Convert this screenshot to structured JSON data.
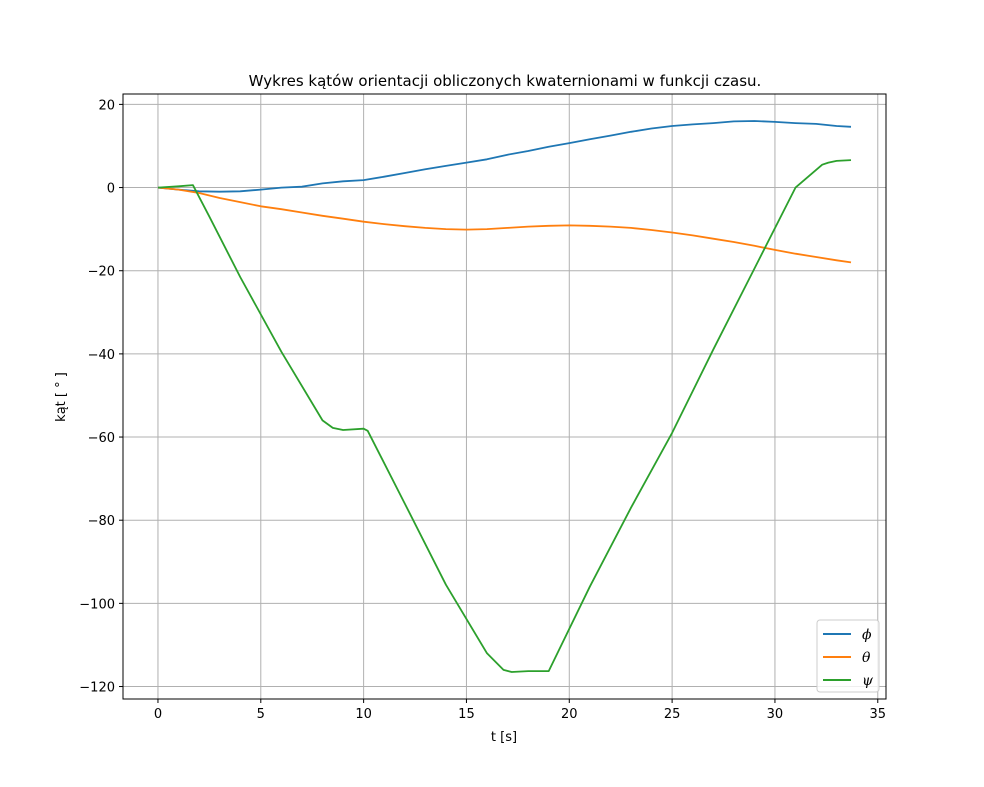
{
  "chart_data": {
    "type": "line",
    "title": "Wykres kątów orientacji obliczonych kwaternionami w funkcji czasu.",
    "xlabel": "t [s]",
    "ylabel": "kąt [ ° ]",
    "xlim": [
      -1.7,
      35.4
    ],
    "ylim": [
      -123,
      22.5
    ],
    "xticks": [
      0,
      5,
      10,
      15,
      20,
      25,
      30,
      35
    ],
    "xtick_labels": [
      "0",
      "5",
      "10",
      "15",
      "20",
      "25",
      "30",
      "35"
    ],
    "yticks": [
      20,
      0,
      -20,
      -40,
      -60,
      -80,
      -100,
      -120
    ],
    "ytick_labels": [
      "20",
      "0",
      "−20",
      "−40",
      "−60",
      "−80",
      "−100",
      "−120"
    ],
    "grid": true,
    "legend_position": "lower-right",
    "series": [
      {
        "name": "ϕ",
        "color": "#1f77b4",
        "x": [
          0,
          1,
          2,
          3,
          4,
          5,
          6,
          7,
          8,
          9,
          10,
          11,
          12,
          13,
          14,
          15,
          16,
          17,
          18,
          19,
          20,
          21,
          22,
          23,
          24,
          25,
          26,
          27,
          28,
          29,
          30,
          31,
          32,
          33,
          33.7
        ],
        "y": [
          0,
          -0.5,
          -0.9,
          -1.0,
          -0.9,
          -0.5,
          0.0,
          0.2,
          1.0,
          1.5,
          1.8,
          2.6,
          3.5,
          4.4,
          5.2,
          6.0,
          6.8,
          7.9,
          8.8,
          9.8,
          10.7,
          11.6,
          12.5,
          13.4,
          14.2,
          14.8,
          15.2,
          15.5,
          15.9,
          16.0,
          15.8,
          15.5,
          15.3,
          14.8,
          14.6
        ]
      },
      {
        "name": "θ",
        "color": "#ff7f0e",
        "x": [
          0,
          1,
          2,
          3,
          4,
          5,
          6,
          7,
          8,
          9,
          10,
          11,
          12,
          13,
          14,
          15,
          16,
          17,
          18,
          19,
          20,
          21,
          22,
          23,
          24,
          25,
          26,
          27,
          28,
          29,
          30,
          31,
          32,
          33,
          33.7
        ],
        "y": [
          0,
          -0.5,
          -1.3,
          -2.5,
          -3.5,
          -4.5,
          -5.2,
          -6.0,
          -6.8,
          -7.5,
          -8.2,
          -8.8,
          -9.3,
          -9.7,
          -10.0,
          -10.1,
          -10.0,
          -9.7,
          -9.4,
          -9.2,
          -9.1,
          -9.2,
          -9.4,
          -9.7,
          -10.2,
          -10.8,
          -11.5,
          -12.3,
          -13.1,
          -14.0,
          -15.0,
          -15.9,
          -16.7,
          -17.5,
          -18.0
        ]
      },
      {
        "name": "ψ",
        "color": "#2ca02c",
        "x": [
          0,
          1,
          1.7,
          2.5,
          4,
          6,
          8,
          8.5,
          9,
          10,
          10.2,
          12,
          14,
          16,
          16.8,
          17.2,
          18,
          19,
          21,
          23,
          25,
          27,
          29,
          31,
          32.3,
          32.6,
          33.0,
          33.7
        ],
        "y": [
          0,
          0.3,
          0.6,
          -7.0,
          -21.5,
          -39.5,
          -56.0,
          -57.8,
          -58.3,
          -58.0,
          -58.5,
          -76.0,
          -95.5,
          -112.0,
          -116.0,
          -116.5,
          -116.3,
          -116.3,
          -96.0,
          -77.0,
          -59.0,
          -39.0,
          -19.5,
          0.0,
          5.5,
          6.0,
          6.4,
          6.6
        ]
      }
    ]
  }
}
